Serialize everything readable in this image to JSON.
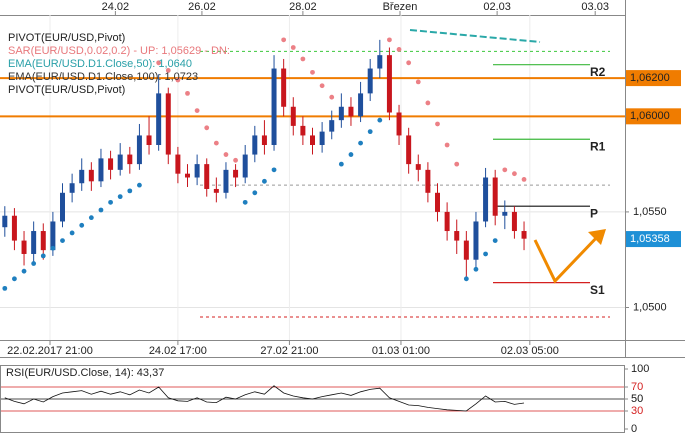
{
  "chart_data": {
    "type": "candlestick",
    "legend_lines": [
      {
        "text": "PIVOT(EUR/USD,Pivot)",
        "color": "#222222"
      },
      {
        "text": "SAR(EUR/USD,0.02,0.2) - UP: 1,05629 - DN:",
        "color": "#e8787c"
      },
      {
        "text": "EMA(EUR/USD.D1.Close,50): 1,0640",
        "color": "#2aa0a8"
      },
      {
        "text": "EMA(EUR/USD.D1.Close,100): 1,0723",
        "color": "#333333"
      },
      {
        "text": "PIVOT(EUR/USD,Pivot)",
        "color": "#222222"
      }
    ],
    "top_dates": [
      {
        "value": 12,
        "label": "24.02"
      },
      {
        "value": 21,
        "label": "26.02"
      },
      {
        "value": 31.5,
        "label": "28.02"
      },
      {
        "value": 41.6,
        "label": "Březen"
      },
      {
        "value": 51.7,
        "label": "02.03"
      },
      {
        "value": 61.9,
        "label": "03.03"
      }
    ],
    "bottom_dates": [
      {
        "value": 5.2,
        "label": "22.02.2017 21:00"
      },
      {
        "value": 18.5,
        "label": "24.02 17:00"
      },
      {
        "value": 30.1,
        "label": "27.02 21:00"
      },
      {
        "value": 41.7,
        "label": "01.03 01:00"
      },
      {
        "value": 55.1,
        "label": "02.03 05:00"
      }
    ],
    "xlim": [
      0,
      65
    ],
    "ylim": [
      1.0483,
      1.0653
    ],
    "yticks": [
      {
        "value": 1.055,
        "label": "1,0550"
      },
      {
        "value": 1.05,
        "label": "1,0500"
      }
    ],
    "grid": true,
    "price_levels": [
      {
        "value": 1.062,
        "label": "1,06200",
        "color": "#f07c00",
        "line": true
      },
      {
        "value": 1.06,
        "label": "1,06000",
        "color": "#f07c00",
        "line": true
      },
      {
        "value": 1.05358,
        "label": "1,05358",
        "color": "#1e90d6",
        "line": false
      }
    ],
    "up_color": "#1f4f9c",
    "down_color": "#c8161d",
    "x": [
      0.5,
      1.5,
      2.5,
      3.5,
      4.5,
      5.5,
      6.5,
      7.5,
      8.5,
      9.5,
      10.5,
      11.5,
      12.5,
      13.5,
      14.5,
      15.5,
      16.5,
      17.5,
      18.5,
      19.5,
      20.5,
      21.5,
      22.5,
      23.5,
      24.5,
      25.5,
      26.5,
      27.5,
      28.5,
      29.5,
      30.5,
      31.5,
      32.5,
      33.5,
      34.5,
      35.5,
      36.5,
      37.5,
      38.5,
      39.5,
      40.5,
      41.5,
      42.5,
      43.5,
      44.5,
      45.5,
      46.5,
      47.5,
      48.5,
      49.5,
      50.5,
      51.5,
      52.5,
      53.5,
      54.5
    ],
    "open": [
      1.0542,
      1.0548,
      1.0535,
      1.0528,
      1.054,
      1.053,
      1.0545,
      1.056,
      1.0565,
      1.0572,
      1.0566,
      1.0578,
      1.0572,
      1.058,
      1.0575,
      1.059,
      1.0585,
      1.0612,
      1.058,
      1.057,
      1.0568,
      1.0575,
      1.0562,
      1.056,
      1.0572,
      1.0568,
      1.058,
      1.059,
      1.0585,
      1.0625,
      1.0605,
      1.0595,
      1.059,
      1.0585,
      1.0592,
      1.0598,
      1.0605,
      1.06,
      1.0612,
      1.0625,
      1.0632,
      1.0602,
      1.059,
      1.0575,
      1.0572,
      1.056,
      1.055,
      1.054,
      1.0535,
      1.0525,
      1.0545,
      1.0568,
      1.0548,
      1.055,
      1.054
    ],
    "high": [
      1.0553,
      1.0552,
      1.054,
      1.0545,
      1.0544,
      1.055,
      1.0565,
      1.057,
      1.0578,
      1.0576,
      1.0583,
      1.0582,
      1.0586,
      1.0584,
      1.0596,
      1.06,
      1.0622,
      1.0615,
      1.0584,
      1.0575,
      1.058,
      1.0578,
      1.0568,
      1.0576,
      1.0575,
      1.0585,
      1.0595,
      1.0598,
      1.0632,
      1.063,
      1.061,
      1.06,
      1.0594,
      1.0597,
      1.0603,
      1.0612,
      1.061,
      1.0618,
      1.063,
      1.064,
      1.0636,
      1.0606,
      1.0594,
      1.058,
      1.0576,
      1.0565,
      1.0555,
      1.0546,
      1.054,
      1.055,
      1.0573,
      1.0572,
      1.0556,
      1.0553,
      1.0545
    ],
    "low": [
      1.0537,
      1.053,
      1.0522,
      1.0524,
      1.0525,
      1.0527,
      1.0542,
      1.0555,
      1.0561,
      1.0561,
      1.0563,
      1.0567,
      1.0569,
      1.057,
      1.0572,
      1.058,
      1.0582,
      1.0575,
      1.0565,
      1.0563,
      1.0564,
      1.0558,
      1.0555,
      1.0557,
      1.0563,
      1.0565,
      1.0576,
      1.058,
      1.0582,
      1.06,
      1.059,
      1.0585,
      1.058,
      1.0581,
      1.0588,
      1.0594,
      1.0595,
      1.0597,
      1.0608,
      1.062,
      1.0598,
      1.0585,
      1.057,
      1.0566,
      1.0555,
      1.0545,
      1.0535,
      1.0528,
      1.0515,
      1.052,
      1.0542,
      1.0543,
      1.0541,
      1.0536,
      1.053
    ],
    "close": [
      1.0548,
      1.0535,
      1.0528,
      1.054,
      1.053,
      1.0545,
      1.056,
      1.0565,
      1.0572,
      1.0566,
      1.0578,
      1.0572,
      1.058,
      1.0575,
      1.059,
      1.0585,
      1.0612,
      1.058,
      1.057,
      1.0568,
      1.0575,
      1.0562,
      1.056,
      1.0572,
      1.0568,
      1.058,
      1.059,
      1.0585,
      1.0625,
      1.0605,
      1.0595,
      1.059,
      1.0585,
      1.0592,
      1.0598,
      1.0605,
      1.06,
      1.0612,
      1.0625,
      1.0632,
      1.0602,
      1.059,
      1.0575,
      1.0572,
      1.056,
      1.055,
      1.054,
      1.0535,
      1.0525,
      1.0545,
      1.0568,
      1.0548,
      1.055,
      1.054,
      1.0536
    ],
    "sar": [
      {
        "color": "#1f7fbf",
        "x": [
          0.5,
          1.5,
          2.5,
          3.5,
          4.5,
          5.5,
          6.5,
          7.5,
          8.5,
          9.5,
          10.5,
          11.5,
          12.5,
          13.5,
          14.5
        ],
        "values": [
          1.051,
          1.0515,
          1.0519,
          1.0523,
          1.0527,
          1.0531,
          1.0535,
          1.0539,
          1.0543,
          1.0547,
          1.0551,
          1.0555,
          1.0558,
          1.0561,
          1.0564
        ]
      },
      {
        "color": "#ec8086",
        "x": [
          16.5,
          17.5,
          18.5,
          19.5,
          20.5,
          21.5,
          22.5,
          23.5,
          24.5
        ],
        "values": [
          1.0628,
          1.0624,
          1.0619,
          1.0612,
          1.0603,
          1.0594,
          1.0586,
          1.058,
          1.0577
        ]
      },
      {
        "color": "#1f7fbf",
        "x": [
          25.5,
          26.5,
          27.5,
          28.5
        ],
        "values": [
          1.0555,
          1.056,
          1.0566,
          1.0572
        ]
      },
      {
        "color": "#ec8086",
        "x": [
          29.5,
          30.5,
          31.5,
          32.5,
          33.5,
          34.5
        ],
        "values": [
          1.064,
          1.0636,
          1.063,
          1.0623,
          1.0616,
          1.061
        ]
      },
      {
        "color": "#1f7fbf",
        "x": [
          35.5,
          36.5,
          37.5,
          38.5,
          39.5
        ],
        "values": [
          1.0575,
          1.058,
          1.0586,
          1.0592,
          1.0598
        ]
      },
      {
        "color": "#ec8086",
        "x": [
          40.5,
          41.5,
          42.5,
          43.5,
          44.5,
          45.5,
          46.5,
          47.5
        ],
        "values": [
          1.064,
          1.0635,
          1.0628,
          1.0618,
          1.0607,
          1.0596,
          1.0585,
          1.0575
        ]
      },
      {
        "color": "#1f7fbf",
        "x": [
          48.5,
          49.5,
          50.5,
          51.5
        ],
        "values": [
          1.0515,
          1.052,
          1.0528,
          1.0535
        ]
      },
      {
        "color": "#ec8086",
        "x": [
          52.5,
          53.5,
          54.5
        ],
        "values": [
          1.0572,
          1.057,
          1.0567
        ]
      }
    ],
    "pivots": [
      {
        "label": "R2",
        "value": 1.0627,
        "color": "#3cb83c"
      },
      {
        "label": "R1",
        "value": 1.0588,
        "color": "#3cb83c"
      },
      {
        "label": "P",
        "value": 1.0553,
        "color": "#111111"
      },
      {
        "label": "S1",
        "value": 1.0513,
        "color": "#d42020"
      }
    ],
    "dashed_levels": [
      {
        "value": 1.0634,
        "color": "#3cc83c"
      },
      {
        "value": 1.0564,
        "color": "#999999"
      },
      {
        "value": 1.0495,
        "color": "#d42020"
      }
    ],
    "rsi": {
      "title": "RSI(EUR/USD.Close, 14): 43,37",
      "color": "#111111",
      "values": [
        52,
        46,
        42,
        50,
        45,
        54,
        60,
        62,
        64,
        58,
        63,
        58,
        62,
        57,
        65,
        60,
        70,
        52,
        47,
        46,
        52,
        45,
        44,
        53,
        50,
        57,
        62,
        58,
        72,
        60,
        55,
        52,
        50,
        54,
        57,
        60,
        56,
        62,
        66,
        68,
        52,
        46,
        40,
        39,
        36,
        34,
        32,
        31,
        30,
        42,
        55,
        45,
        46,
        41,
        43.37
      ],
      "ylim": [
        0,
        100
      ],
      "yticks": [
        100,
        70,
        50,
        30,
        0
      ],
      "levels": [
        {
          "value": 70,
          "color": "#d42020"
        },
        {
          "value": 50,
          "color": "#111111"
        },
        {
          "value": 30,
          "color": "#d42020"
        }
      ]
    }
  }
}
